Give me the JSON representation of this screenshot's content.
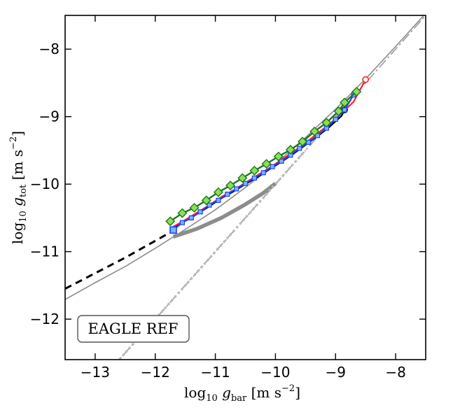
{
  "chart_data": {
    "type": "line",
    "title": "",
    "xlabel_parts": {
      "base": "log",
      "sub": "10",
      "var": "g",
      "varsub": "bar",
      "unit": "[m s",
      "exp": "−2",
      "close": "]"
    },
    "ylabel_parts": {
      "base": "log",
      "sub": "10",
      "var": "g",
      "varsub": "tot",
      "unit": "[m s",
      "exp": "−2",
      "close": "]"
    },
    "xlim": [
      -13.5,
      -7.5
    ],
    "ylim": [
      -12.6,
      -7.5
    ],
    "x_ticks": [
      -13,
      -12,
      -11,
      -10,
      -9,
      -8
    ],
    "y_ticks": [
      -12,
      -11,
      -10,
      -9,
      -8
    ],
    "x_tick_labels": [
      "−13",
      "−12",
      "−11",
      "−10",
      "−9",
      "−8"
    ],
    "y_tick_labels": [
      "−12",
      "−11",
      "−10",
      "−9",
      "−8"
    ],
    "annotation": "EAGLE REF",
    "grid": false,
    "colors": {
      "black": "#000000",
      "blue": "#1f3fff",
      "blue_fill": "#7ab4ff",
      "red": "#ff2020",
      "green": "#1a7a1a",
      "green_fill": "#8fdc5a",
      "grey": "#8c8c8c",
      "light_grey": "#bdbdbd",
      "dashdot": "#9a9a9a"
    },
    "series": [
      {
        "style": "one-to-one",
        "x": [
          -13.5,
          -7.5
        ],
        "y": [
          -13.5,
          -7.5
        ]
      },
      {
        "style": "thin-grey-fit",
        "x": [
          -13.5,
          -13.0,
          -12.5,
          -12.0,
          -11.5,
          -11.0,
          -10.5,
          -10.0,
          -9.5,
          -9.0,
          -8.5,
          -8.0,
          -7.5
        ],
        "y": [
          -11.71,
          -11.46,
          -11.22,
          -10.95,
          -10.67,
          -10.38,
          -10.05,
          -9.7,
          -9.31,
          -8.89,
          -8.44,
          -7.96,
          -7.47
        ]
      },
      {
        "style": "black-dashed-extension",
        "x": [
          -13.5,
          -13.0,
          -12.5,
          -12.0,
          -11.7
        ],
        "y": [
          -11.55,
          -11.32,
          -11.09,
          -10.84,
          -10.69
        ]
      },
      {
        "style": "thick-grey-curve",
        "x": [
          -11.7,
          -11.3,
          -10.9,
          -10.5,
          -10.2,
          -10.0
        ],
        "y": [
          -10.78,
          -10.66,
          -10.5,
          -10.3,
          -10.13,
          -9.99
        ]
      },
      {
        "style": "dotted-grey-line",
        "x": [
          -12.6,
          -9.5
        ],
        "y": [
          -12.6,
          -9.5
        ]
      },
      {
        "style": "black-line",
        "marker": "circle",
        "x": [
          -11.7,
          -11.5,
          -11.3,
          -11.1,
          -10.9,
          -10.7,
          -10.5,
          -10.3,
          -10.1,
          -9.9,
          -9.7,
          -9.5,
          -9.3,
          -9.1,
          -8.9,
          -8.85
        ],
        "y": [
          -10.65,
          -10.53,
          -10.44,
          -10.33,
          -10.21,
          -10.11,
          -10.0,
          -9.9,
          -9.78,
          -9.67,
          -9.55,
          -9.42,
          -9.29,
          -9.15,
          -8.99,
          -8.9
        ]
      },
      {
        "style": "red-line",
        "marker": "circle",
        "x": [
          -11.7,
          -11.5,
          -11.3,
          -11.1,
          -10.9,
          -10.7,
          -10.5,
          -10.3,
          -10.1,
          -9.9,
          -9.7,
          -9.5,
          -9.3,
          -9.1,
          -8.9,
          -8.7,
          -8.5
        ],
        "y": [
          -10.63,
          -10.53,
          -10.42,
          -10.31,
          -10.19,
          -10.09,
          -9.98,
          -9.87,
          -9.76,
          -9.64,
          -9.52,
          -9.39,
          -9.25,
          -9.11,
          -8.95,
          -8.78,
          -8.45
        ]
      },
      {
        "style": "blue-line",
        "marker": "square",
        "x": [
          -11.7,
          -11.55,
          -11.4,
          -11.25,
          -11.1,
          -10.95,
          -10.8,
          -10.65,
          -10.5,
          -10.35,
          -10.2,
          -10.05,
          -9.9,
          -9.75,
          -9.6,
          -9.45,
          -9.3,
          -9.15,
          -9.0,
          -8.85,
          -8.7
        ],
        "y": [
          -10.68,
          -10.57,
          -10.5,
          -10.41,
          -10.31,
          -10.24,
          -10.15,
          -10.07,
          -9.99,
          -9.91,
          -9.83,
          -9.74,
          -9.66,
          -9.57,
          -9.47,
          -9.38,
          -9.28,
          -9.17,
          -9.04,
          -8.9,
          -8.68
        ]
      },
      {
        "style": "green-line",
        "marker": "diamond",
        "x": [
          -11.75,
          -11.55,
          -11.35,
          -11.15,
          -10.95,
          -10.75,
          -10.55,
          -10.35,
          -10.15,
          -9.95,
          -9.75,
          -9.55,
          -9.35,
          -9.15,
          -8.95,
          -8.85,
          -8.65
        ],
        "y": [
          -10.55,
          -10.43,
          -10.35,
          -10.24,
          -10.12,
          -10.02,
          -9.91,
          -9.8,
          -9.7,
          -9.59,
          -9.49,
          -9.37,
          -9.22,
          -9.09,
          -8.92,
          -8.79,
          -8.63
        ]
      }
    ]
  }
}
